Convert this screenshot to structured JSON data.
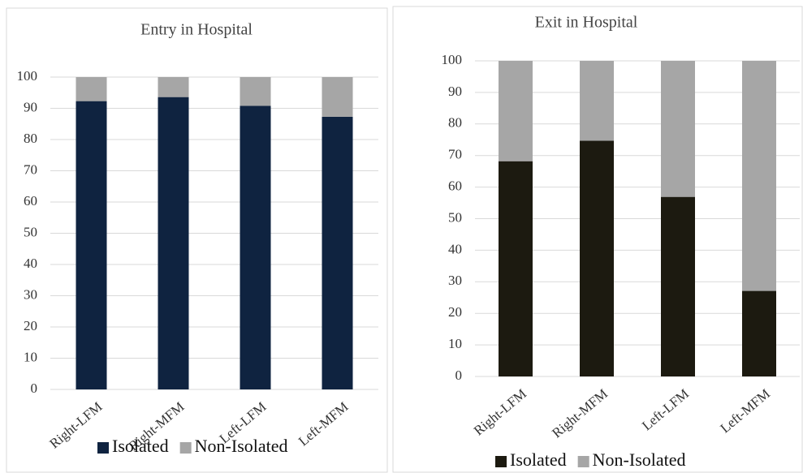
{
  "chart_data": [
    {
      "type": "stacked_bar",
      "title": "Entry in Hospital",
      "categories": [
        "Right-LFM",
        "Right-MFM",
        "Left-LFM",
        "Left-MFM"
      ],
      "series": [
        {
          "name": "Isolated",
          "color": "#0f2340",
          "values": [
            92.3,
            93.6,
            90.8,
            87.3
          ]
        },
        {
          "name": "Non-Isolated",
          "color": "#a6a6a6",
          "values": [
            7.7,
            6.4,
            9.2,
            12.7
          ]
        }
      ],
      "ylim": [
        0,
        100
      ],
      "yticks": [
        0,
        10,
        20,
        30,
        40,
        50,
        60,
        70,
        80,
        90,
        100
      ],
      "grid": true,
      "legend": "bottom"
    },
    {
      "type": "stacked_bar",
      "title": "Exit in Hospital",
      "categories": [
        "Right-LFM",
        "Right-MFM",
        "Left-LFM",
        "Left-MFM"
      ],
      "series": [
        {
          "name": "Isolated",
          "color": "#1c1a10",
          "values": [
            68.2,
            74.7,
            56.9,
            27.1
          ]
        },
        {
          "name": "Non-Isolated",
          "color": "#a6a6a6",
          "values": [
            31.8,
            25.3,
            43.1,
            72.9
          ]
        }
      ],
      "ylim": [
        0,
        100
      ],
      "yticks": [
        0,
        10,
        20,
        30,
        40,
        50,
        60,
        70,
        80,
        90,
        100
      ],
      "grid": true,
      "legend": "bottom"
    }
  ]
}
